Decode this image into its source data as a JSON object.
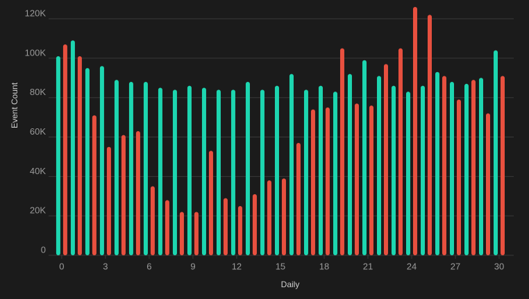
{
  "chart_data": {
    "type": "bar",
    "y_label": "Event Count",
    "x_label": "Daily",
    "x": [
      0,
      1,
      2,
      3,
      4,
      5,
      6,
      7,
      8,
      9,
      10,
      11,
      12,
      13,
      14,
      15,
      16,
      17,
      18,
      19,
      20,
      21,
      22,
      23,
      24,
      25,
      26,
      27,
      28,
      29,
      30
    ],
    "series": [
      {
        "color": "#1dd6b0",
        "values": [
          101000,
          109000,
          95000,
          96000,
          89000,
          88000,
          88000,
          85000,
          84000,
          86000,
          85000,
          84000,
          84000,
          88000,
          84000,
          86000,
          92000,
          84000,
          86000,
          83000,
          92000,
          99000,
          91000,
          86000,
          83000,
          86000,
          93000,
          88000,
          87000,
          90000,
          104000
        ]
      },
      {
        "color": "#e8503f",
        "values": [
          107000,
          101000,
          71000,
          55000,
          61000,
          63000,
          35000,
          28000,
          22000,
          22000,
          53000,
          29000,
          25000,
          31000,
          38000,
          39000,
          57000,
          74000,
          75000,
          105000,
          77000,
          76000,
          97000,
          105000,
          126000,
          122000,
          91000,
          79000,
          89000,
          72000,
          91000
        ]
      }
    ],
    "xlim": [
      -0.9,
      31
    ],
    "xticks": [
      0,
      3,
      6,
      9,
      12,
      15,
      18,
      21,
      24,
      27,
      30
    ],
    "ylim": [
      0,
      126000
    ],
    "yticks": [
      0,
      {
        "value": 20000,
        "label": "20K"
      },
      {
        "value": 40000,
        "label": "40K"
      },
      {
        "value": 60000,
        "label": "60K"
      },
      {
        "value": 80000,
        "label": "80K"
      },
      {
        "value": 100000,
        "label": "100K"
      },
      {
        "value": 120000,
        "label": "120K"
      }
    ],
    "grid": true
  }
}
